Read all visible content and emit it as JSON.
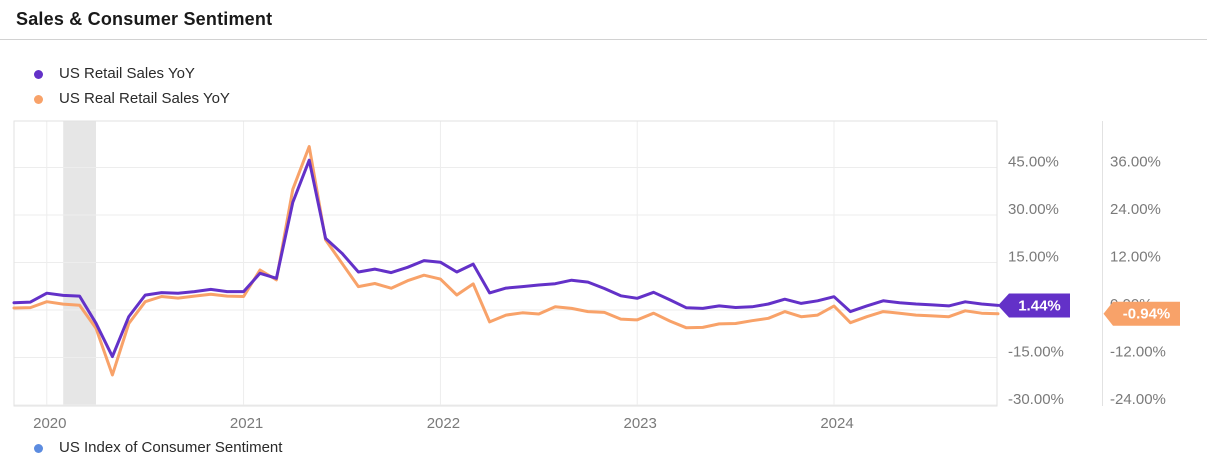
{
  "header": {
    "title": "Sales & Consumer Sentiment"
  },
  "legend": {
    "top": [
      {
        "label": "US Retail Sales YoY",
        "color": "#6331c8"
      },
      {
        "label": "US Real Retail Sales YoY",
        "color": "#f8a269"
      }
    ],
    "bottom": [
      {
        "label": "US Index of Consumer Sentiment",
        "color": "#5c8ce0"
      }
    ]
  },
  "chart_data": {
    "type": "line",
    "title": "Sales & Consumer Sentiment",
    "grid": true,
    "legend_position": "top-left",
    "x_months": [
      "2019-10",
      "2019-11",
      "2019-12",
      "2020-01",
      "2020-02",
      "2020-03",
      "2020-04",
      "2020-05",
      "2020-06",
      "2020-07",
      "2020-08",
      "2020-09",
      "2020-10",
      "2020-11",
      "2020-12",
      "2021-01",
      "2021-02",
      "2021-03",
      "2021-04",
      "2021-05",
      "2021-06",
      "2021-07",
      "2021-08",
      "2021-09",
      "2021-10",
      "2021-11",
      "2021-12",
      "2022-01",
      "2022-02",
      "2022-03",
      "2022-04",
      "2022-05",
      "2022-06",
      "2022-07",
      "2022-08",
      "2022-09",
      "2022-10",
      "2022-11",
      "2022-12",
      "2023-01",
      "2023-02",
      "2023-03",
      "2023-04",
      "2023-05",
      "2023-06",
      "2023-07",
      "2023-08",
      "2023-09",
      "2023-10",
      "2023-11",
      "2023-12",
      "2024-01",
      "2024-02",
      "2024-03",
      "2024-04",
      "2024-05",
      "2024-06",
      "2024-07",
      "2024-08",
      "2024-09",
      "2024-10"
    ],
    "series": [
      {
        "name": "US Retail Sales YoY",
        "color": "#6331c8",
        "axis": "right1",
        "unit": "%",
        "values": [
          2.3,
          2.5,
          5.3,
          4.6,
          4.4,
          -4.2,
          -14.7,
          -2.1,
          4.7,
          5.5,
          5.3,
          5.8,
          6.5,
          5.8,
          5.8,
          11.6,
          10.0,
          34.0,
          47.3,
          22.6,
          17.9,
          12.0,
          12.9,
          11.8,
          13.5,
          15.6,
          15.1,
          12.0,
          14.5,
          5.4,
          6.9,
          7.4,
          7.9,
          8.3,
          9.4,
          8.8,
          6.8,
          4.5,
          3.7,
          5.6,
          3.2,
          0.7,
          0.5,
          1.3,
          0.8,
          1.0,
          1.9,
          3.4,
          2.1,
          2.9,
          4.2,
          -0.5,
          1.3,
          2.9,
          2.3,
          1.9,
          1.6,
          1.3,
          2.6,
          1.9,
          1.44
        ]
      },
      {
        "name": "US Real Retail Sales YoY",
        "color": "#f8a269",
        "axis": "right2",
        "unit": "%",
        "values": [
          0.5,
          0.6,
          2.1,
          1.5,
          1.2,
          -4.6,
          -16.4,
          -3.4,
          2.1,
          3.4,
          3.0,
          3.5,
          4.0,
          3.5,
          3.4,
          10.1,
          7.6,
          30.5,
          41.3,
          17.7,
          11.8,
          5.9,
          6.7,
          5.5,
          7.4,
          8.8,
          7.8,
          3.8,
          6.6,
          -3.0,
          -1.3,
          -0.7,
          -1.0,
          0.8,
          0.4,
          -0.4,
          -0.6,
          -2.3,
          -2.5,
          -0.8,
          -2.8,
          -4.5,
          -4.4,
          -3.5,
          -3.4,
          -2.7,
          -2.1,
          -0.4,
          -1.7,
          -1.3,
          1.0,
          -3.2,
          -1.7,
          -0.4,
          -0.8,
          -1.3,
          -1.5,
          -1.7,
          -0.2,
          -0.8,
          -0.94
        ]
      }
    ],
    "right_axis_1": {
      "percent_per_gridline": 15,
      "ticks": [
        "45.00%",
        "30.00%",
        "15.00%",
        "0.00%",
        "-15.00%",
        "-30.00%"
      ],
      "tick_values": [
        45,
        30,
        15,
        0,
        -15,
        -30
      ]
    },
    "right_axis_2": {
      "percent_per_gridline": 12,
      "ticks": [
        "36.00%",
        "24.00%",
        "12.00%",
        "0.00%",
        "-12.00%",
        "-24.00%"
      ],
      "tick_values": [
        36,
        24,
        12,
        0,
        -12,
        -24
      ]
    },
    "x_ticks": [
      {
        "label": "2020",
        "at": "2019-12"
      },
      {
        "label": "2021",
        "at": "2020-12"
      },
      {
        "label": "2022",
        "at": "2021-12"
      },
      {
        "label": "2023",
        "at": "2022-12"
      },
      {
        "label": "2024",
        "at": "2023-12"
      }
    ],
    "recession_band": {
      "from": "2020-01",
      "to": "2020-03"
    },
    "last_value_badges": [
      {
        "label": "1.44%",
        "color": "#6331c8",
        "axis": "right1",
        "value": 1.44
      },
      {
        "label": "-0.94%",
        "color": "#f8a269",
        "axis": "right2",
        "value": -0.94
      }
    ],
    "colors": {
      "grid": "#ededed",
      "plot_border": "#e2e2e2",
      "band": "#e6e6e6",
      "axis_text": "#7a7a7a"
    }
  }
}
